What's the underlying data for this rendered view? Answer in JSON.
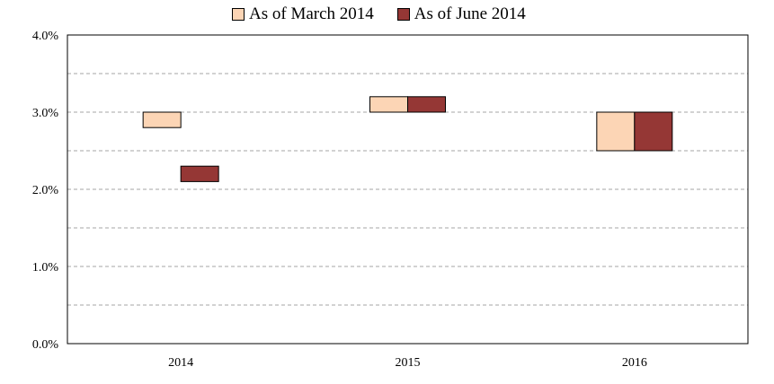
{
  "chart_data": {
    "type": "range-bar",
    "categories": [
      "2014",
      "2015",
      "2016"
    ],
    "series": [
      {
        "name": "As of March 2014",
        "color": "#FCD5B5",
        "ranges": [
          [
            2.8,
            3.0
          ],
          [
            3.0,
            3.2
          ],
          [
            2.5,
            3.0
          ]
        ]
      },
      {
        "name": "As of June 2014",
        "color": "#953735",
        "ranges": [
          [
            2.1,
            2.3
          ],
          [
            3.0,
            3.2
          ],
          [
            2.5,
            3.0
          ]
        ]
      }
    ],
    "ylim": [
      0,
      4
    ],
    "yticks": [
      0,
      0.5,
      1,
      1.5,
      2,
      2.5,
      3,
      3.5,
      4
    ],
    "ytick_labels": [
      "0.0%",
      "1.0%",
      "2.0%",
      "3.0%",
      "4.0%"
    ],
    "grid": true,
    "legend_position": "top"
  }
}
